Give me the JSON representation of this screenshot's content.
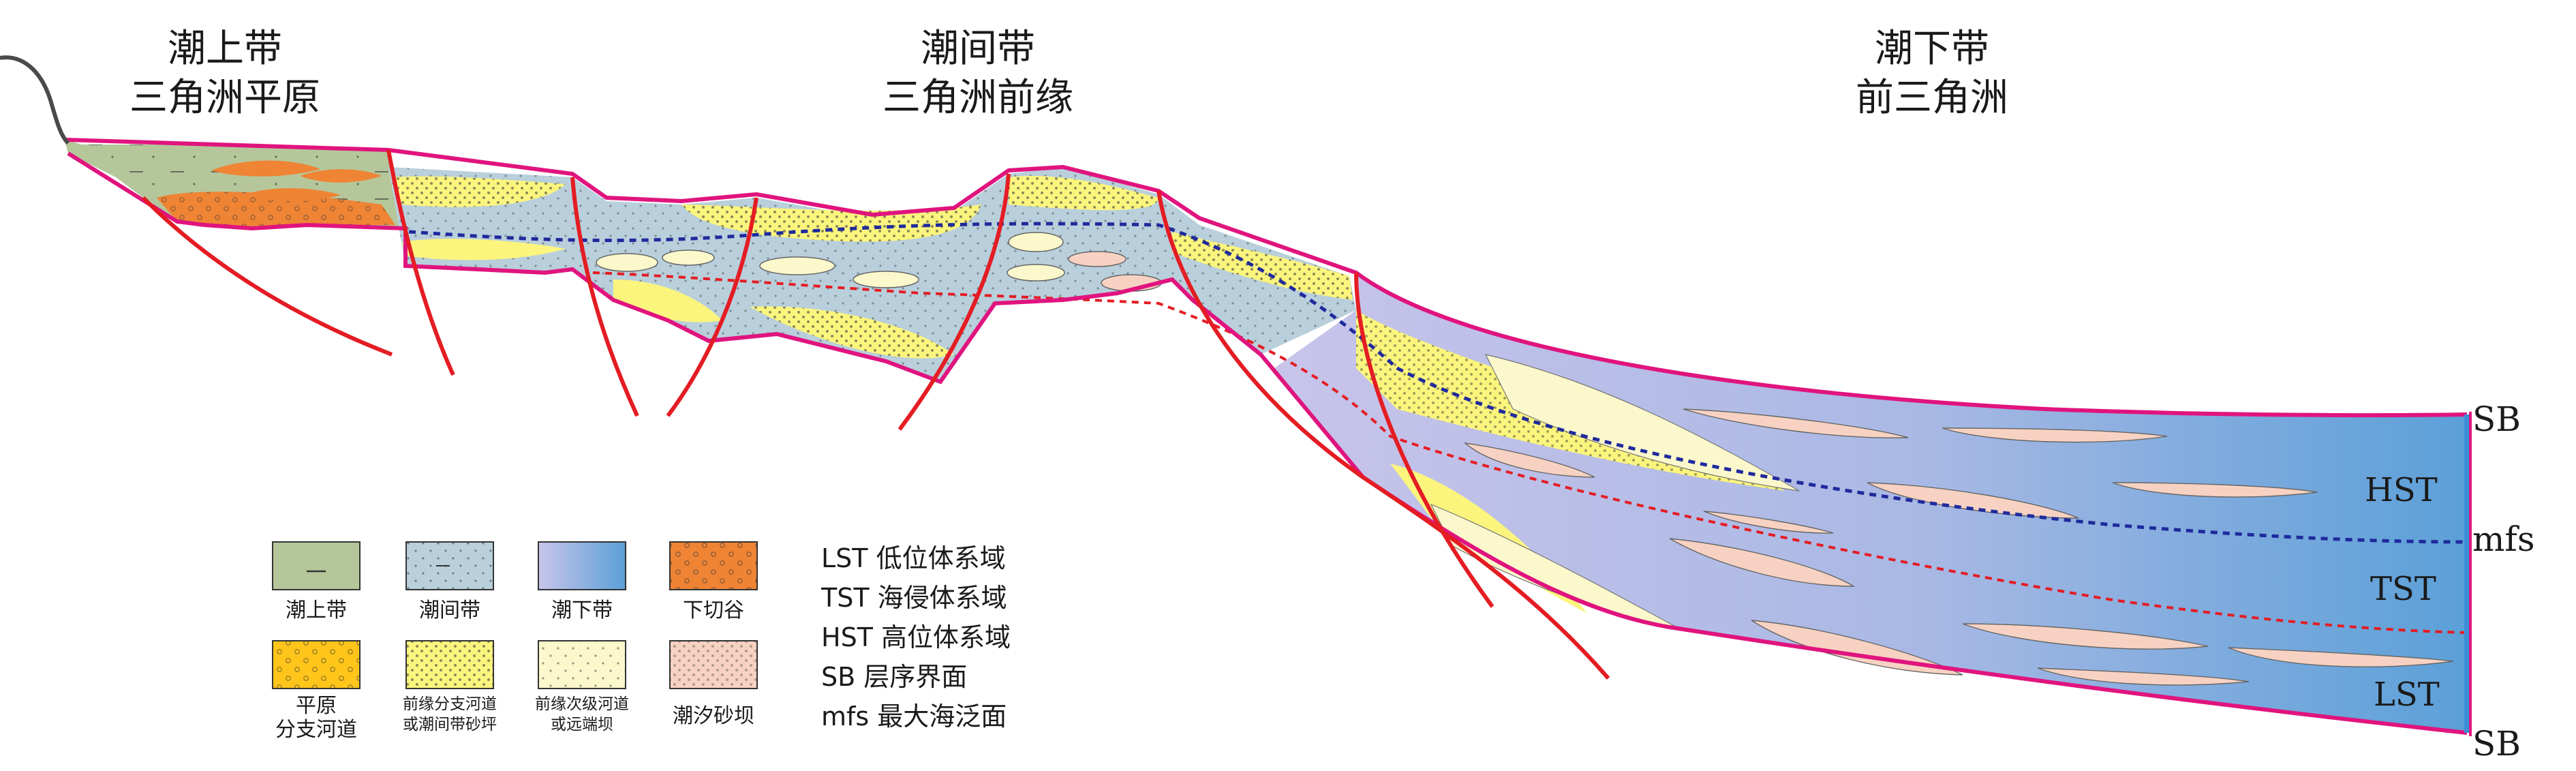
{
  "zones": [
    {
      "line1": "潮上带",
      "line2": "三角洲平原"
    },
    {
      "line1": "潮间带",
      "line2": "三角洲前缘"
    },
    {
      "line1": "潮下带",
      "line2": "前三角洲"
    }
  ],
  "boundary_labels": {
    "top": "SB",
    "mfs": "mfs",
    "bottom": "SB"
  },
  "systems_tracts": {
    "hst": "HST",
    "tst": "TST",
    "lst": "LST"
  },
  "legend": [
    {
      "label": "潮上带",
      "label2": "",
      "fill": "#b5c79a"
    },
    {
      "label": "潮间带",
      "label2": "",
      "fill": "#b9cfdc"
    },
    {
      "label": "潮下带",
      "label2": "",
      "fill": "#b5b3e0"
    },
    {
      "label": "下切谷",
      "label2": "",
      "fill": "#ef8435"
    },
    {
      "label": "平原",
      "label2": "分支河道",
      "fill": "#ffc51a"
    },
    {
      "label": "前缘分支河道",
      "label2": "或潮间带砂坪",
      "fill": "#fbf57e"
    },
    {
      "label": "前缘次级河道",
      "label2": "或远端坝",
      "fill": "#fbf8cc"
    },
    {
      "label": "潮汐砂坝",
      "label2": "",
      "fill": "#f7d2c2"
    }
  ],
  "abbreviations": [
    "LST 低位体系域",
    "TST 海侵体系域",
    "HST 高位体系域",
    "SB 层序界面",
    "mfs 最大海泛面"
  ],
  "colors": {
    "fault": "#e41c23",
    "outline": "#e0147e",
    "mfs_line": "#1f2a9c",
    "tst_line": "#e41c23",
    "sea_blue": "#5aa0d8",
    "sea_lilac": "#c4c0e8"
  }
}
